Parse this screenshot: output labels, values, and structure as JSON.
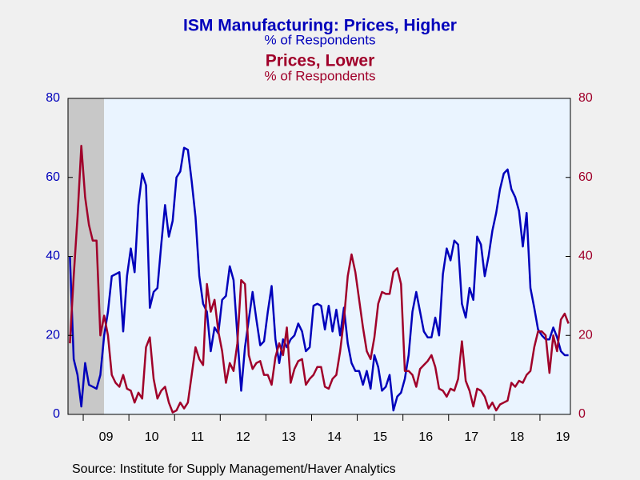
{
  "chart_data": {
    "type": "line",
    "title": "ISM Manufacturing: Prices, Higher",
    "subtitle": "% of Respondents",
    "title2": "Prices, Lower",
    "subtitle2": "% of Respondents",
    "source": "Source:  Institute for Supply Management/Haver Analytics",
    "categories": [
      null,
      null,
      null,
      null,
      null,
      null,
      null,
      null,
      null,
      null,
      "09",
      null,
      null,
      null,
      null,
      null,
      null,
      null,
      null,
      null,
      null,
      null,
      "10",
      null,
      null,
      null,
      null,
      null,
      null,
      null,
      null,
      null,
      null,
      null,
      "11",
      null,
      null,
      null,
      null,
      null,
      null,
      null,
      null,
      null,
      null,
      null,
      "12",
      null,
      null,
      null,
      null,
      null,
      null,
      null,
      null,
      null,
      null,
      null,
      "13",
      null,
      null,
      null,
      null,
      null,
      null,
      null,
      null,
      null,
      null,
      null,
      "14",
      null,
      null,
      null,
      null,
      null,
      null,
      null,
      null,
      null,
      null,
      null,
      "15",
      null,
      null,
      null,
      null,
      null,
      null,
      null,
      null,
      null,
      null,
      null,
      "16",
      null,
      null,
      null,
      null,
      null,
      null,
      null,
      null,
      null,
      null,
      null,
      "17",
      null,
      null,
      null,
      null,
      null,
      null,
      null,
      null,
      null,
      null,
      null,
      "18",
      null,
      null,
      null,
      null,
      null,
      null,
      null,
      null,
      null,
      null,
      null,
      "19",
      null
    ],
    "series": [
      {
        "color": "#0000bb",
        "axis": "y",
        "values": [
          40,
          14,
          10,
          2,
          13,
          7.5,
          7,
          6.5,
          10,
          20,
          26,
          35,
          35.5,
          36,
          21,
          35,
          42,
          36,
          53,
          61,
          58,
          27,
          31,
          32,
          43,
          53,
          45,
          49,
          60,
          61.5,
          67.5,
          67,
          59,
          50,
          35,
          28,
          26,
          16,
          22,
          20.5,
          29,
          30,
          37.5,
          34,
          20,
          6,
          17,
          24,
          31,
          24,
          17.5,
          18.5,
          26,
          32.5,
          19,
          13,
          19,
          17,
          19,
          20,
          23,
          21,
          16,
          17,
          27.5,
          28,
          27.5,
          21.5,
          27.5,
          21,
          26.5,
          20,
          27,
          18,
          13,
          11,
          11,
          7.5,
          11,
          6.5,
          15,
          12,
          6,
          7,
          10,
          1,
          4.5,
          5.5,
          9,
          15,
          26,
          31,
          26,
          21,
          19.5,
          19.5,
          24.5,
          20,
          35.5,
          42,
          39,
          44,
          43,
          28,
          24.5,
          32,
          29,
          45,
          43,
          35,
          40,
          46.5,
          51,
          57,
          61,
          62,
          57,
          55,
          51.5,
          42.5,
          51,
          32,
          27,
          21.5,
          20,
          19,
          19,
          22,
          19.5,
          16,
          15,
          15
        ]
      },
      {
        "color": "#a0002a",
        "axis": "y2",
        "values": [
          18,
          35,
          50,
          68,
          55,
          48,
          44,
          44,
          20,
          25,
          20,
          10,
          8,
          7,
          10,
          6.5,
          6,
          3,
          5.5,
          4,
          17,
          19.5,
          9,
          4,
          6,
          7,
          3,
          0.5,
          1,
          3,
          1.5,
          3,
          10,
          17,
          14,
          12.5,
          33,
          26,
          29,
          21,
          16,
          8,
          13,
          11,
          18,
          34,
          33,
          15,
          11.5,
          13,
          13.5,
          10,
          10,
          7.5,
          14.5,
          18,
          15,
          22,
          8,
          11.5,
          13.5,
          14,
          7.5,
          9,
          10,
          12,
          12,
          7,
          6.5,
          9,
          10,
          16,
          24,
          35,
          40.5,
          36,
          29,
          22,
          16,
          14,
          19.5,
          28,
          31,
          30.5,
          30.5,
          36,
          37,
          33,
          11,
          11,
          10,
          7,
          11.5,
          12.5,
          13.5,
          15,
          12,
          6.5,
          6,
          4.5,
          6.5,
          6,
          9,
          18.5,
          8.5,
          6,
          2,
          6.5,
          6,
          4.5,
          1.5,
          3,
          1,
          2.5,
          3,
          3.5,
          8,
          7,
          8.5,
          8,
          10,
          11,
          17,
          21,
          21,
          20,
          10.5,
          20,
          16,
          24,
          25.5,
          23
        ]
      }
    ],
    "ylim": [
      0,
      80
    ],
    "yticks": [
      0,
      20,
      40,
      60,
      80
    ],
    "ycolor": "#0000bb",
    "y2lim": [
      0,
      80
    ],
    "y2ticks": [
      0,
      20,
      40,
      60,
      80
    ],
    "y2color": "#a0002a",
    "grid": false
  }
}
